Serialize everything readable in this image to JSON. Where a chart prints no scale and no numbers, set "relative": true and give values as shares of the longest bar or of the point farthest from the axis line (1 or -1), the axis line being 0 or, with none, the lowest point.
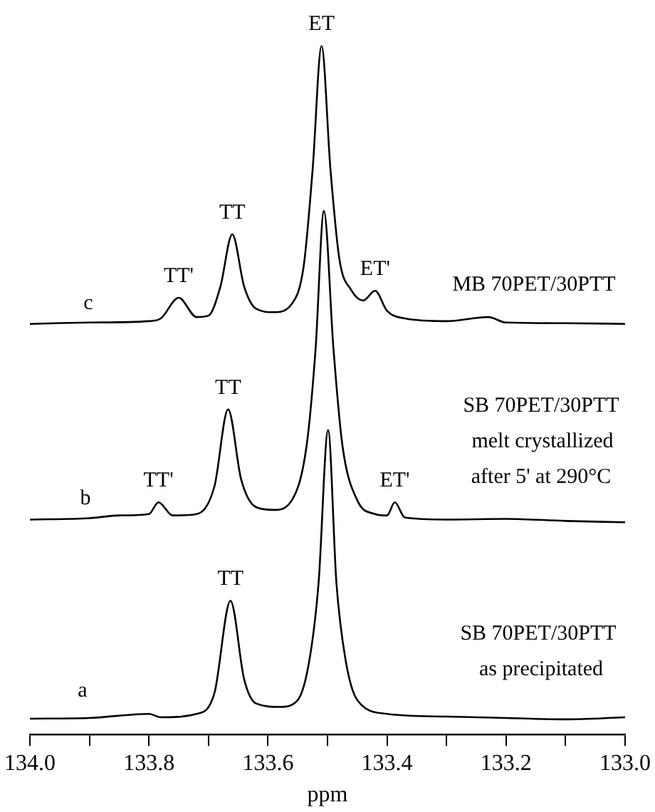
{
  "chart_data": {
    "type": "line",
    "relative": true,
    "xlabel": "ppm",
    "xlim": [
      134.0,
      133.0
    ],
    "xticks": [
      {
        "value": 134.0,
        "label": "134.0"
      },
      {
        "value": 133.9,
        "label": null
      },
      {
        "value": 133.8,
        "label": "133.8"
      },
      {
        "value": 133.7,
        "label": null
      },
      {
        "value": 133.6,
        "label": "133.6"
      },
      {
        "value": 133.5,
        "label": null
      },
      {
        "value": 133.4,
        "label": "133.4"
      },
      {
        "value": 133.3,
        "label": null
      },
      {
        "value": 133.2,
        "label": "133.2"
      },
      {
        "value": 133.1,
        "label": null
      },
      {
        "value": 133.0,
        "label": "133.0"
      }
    ],
    "marker": "none",
    "line_style": "solid",
    "series": [
      {
        "color": "#000000",
        "x": [
          134.0,
          133.9,
          133.8,
          133.78,
          133.75,
          133.72,
          133.7,
          133.68,
          133.66,
          133.64,
          133.62,
          133.59,
          133.56,
          133.54,
          133.525,
          133.51,
          133.495,
          133.48,
          133.46,
          133.44,
          133.42,
          133.4,
          133.37,
          133.3,
          133.23,
          133.2,
          133.1,
          133.0
        ],
        "values": [
          0.596,
          0.598,
          0.6,
          0.604,
          0.634,
          0.606,
          0.608,
          0.65,
          0.726,
          0.65,
          0.618,
          0.613,
          0.625,
          0.68,
          0.82,
          1.0,
          0.82,
          0.69,
          0.645,
          0.63,
          0.644,
          0.615,
          0.604,
          0.6,
          0.606,
          0.598,
          0.597,
          0.596
        ]
      },
      {
        "color": "#000000",
        "x": [
          134.0,
          133.9,
          133.85,
          133.8,
          133.784,
          133.76,
          133.72,
          133.69,
          133.667,
          133.645,
          133.62,
          133.59,
          133.56,
          133.535,
          133.52,
          133.506,
          133.49,
          133.475,
          133.45,
          133.42,
          133.4,
          133.387,
          133.37,
          133.3,
          133.2,
          133.1,
          133.0
        ],
        "values": [
          0.312,
          0.314,
          0.318,
          0.32,
          0.337,
          0.318,
          0.32,
          0.36,
          0.472,
          0.37,
          0.33,
          0.326,
          0.34,
          0.42,
          0.56,
          0.76,
          0.56,
          0.42,
          0.34,
          0.32,
          0.318,
          0.337,
          0.315,
          0.312,
          0.313,
          0.31,
          0.308
        ]
      },
      {
        "color": "#000000",
        "x": [
          134.0,
          133.9,
          133.8,
          133.78,
          133.72,
          133.69,
          133.663,
          133.64,
          133.62,
          133.58,
          133.55,
          133.53,
          133.515,
          133.499,
          133.485,
          133.47,
          133.45,
          133.4,
          133.3,
          133.2,
          133.1,
          133.0
        ],
        "values": [
          0.023,
          0.024,
          0.03,
          0.025,
          0.03,
          0.06,
          0.194,
          0.08,
          0.045,
          0.04,
          0.05,
          0.11,
          0.22,
          0.442,
          0.22,
          0.11,
          0.05,
          0.03,
          0.026,
          0.024,
          0.022,
          0.025
        ]
      }
    ],
    "annotations": [
      {
        "text": "ET",
        "x": 133.51,
        "y": 1.0
      },
      {
        "text": "TT",
        "x": 133.66,
        "y": 0.726
      },
      {
        "text": "TT'",
        "x": 133.75,
        "y": 0.634
      },
      {
        "text": "ET'",
        "x": 133.42,
        "y": 0.644
      },
      "MB 70PET/30PTT",
      "c",
      {
        "text": "TT",
        "x": 133.667,
        "y": 0.472
      },
      {
        "text": "TT'",
        "x": 133.784,
        "y": 0.337
      },
      {
        "text": "ET'",
        "x": 133.387,
        "y": 0.337
      },
      "SB 70PET/30PTT",
      "melt crystallized",
      "after 5' at 290°C",
      "b",
      {
        "text": "TT",
        "x": 133.663,
        "y": 0.194
      },
      "SB 70PET/30PTT",
      "as precipitated",
      "a"
    ]
  }
}
